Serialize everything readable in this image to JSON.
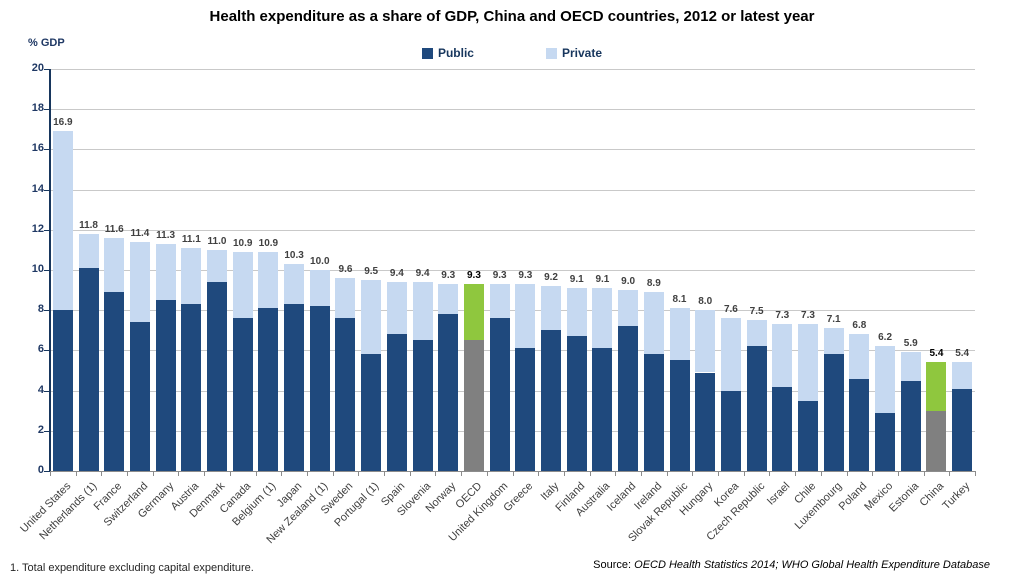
{
  "title": "Health expenditure as a share of GDP, China and OECD countries, 2012 or latest year",
  "y_axis_label": "% GDP",
  "legend": {
    "public_label": "Public",
    "private_label": "Private"
  },
  "footnote": "1. Total expenditure excluding capital expenditure.",
  "source_prefix": "Source:",
  "source_text": "OECD Health Statistics 2014; WHO Global Health Expenditure Database",
  "colors": {
    "public": "#1F497D",
    "private": "#C6D9F1",
    "highlight_public": "#808080",
    "highlight_private": "#8FC73E",
    "gridline": "#C9C9C9",
    "y_axis": "#17365D",
    "x_axis": "#8C8C8C",
    "value_label": "#404040",
    "value_label_highlight": "#000000"
  },
  "chart_data": {
    "type": "bar",
    "stacked": true,
    "title": "Health expenditure as a share of GDP, China and OECD countries, 2012 or latest year",
    "xlabel": "",
    "ylabel": "% GDP",
    "ylim": [
      0,
      20
    ],
    "ytick_step": 2,
    "grid": true,
    "legend_position": "top-center",
    "series_names": [
      "Public",
      "Private"
    ],
    "highlighted_categories": [
      "OECD",
      "China"
    ],
    "categories": [
      "United States",
      "Netherlands (1)",
      "France",
      "Switzerland",
      "Germany",
      "Austria",
      "Denmark",
      "Canada",
      "Belgium (1)",
      "Japan",
      "New Zealand (1)",
      "Sweden",
      "Portugal (1)",
      "Spain",
      "Slovenia",
      "Norway",
      "OECD",
      "United Kingdom",
      "Greece",
      "Italy",
      "Finland",
      "Australia",
      "Iceland",
      "Ireland",
      "Slovak Republic",
      "Hungary",
      "Korea",
      "Czech Republic",
      "Israel",
      "Chile",
      "Luxembourg",
      "Poland",
      "Mexico",
      "Estonia",
      "China",
      "Turkey"
    ],
    "totals": [
      16.9,
      11.8,
      11.6,
      11.4,
      11.3,
      11.1,
      11.0,
      10.9,
      10.9,
      10.3,
      10.0,
      9.6,
      9.5,
      9.4,
      9.4,
      9.3,
      9.3,
      9.3,
      9.3,
      9.2,
      9.1,
      9.1,
      9.0,
      8.9,
      8.1,
      8.0,
      7.6,
      7.5,
      7.3,
      7.3,
      7.1,
      6.8,
      6.2,
      5.9,
      5.4,
      5.4
    ],
    "public": [
      8.0,
      10.1,
      8.9,
      7.4,
      8.5,
      8.3,
      9.4,
      7.6,
      8.1,
      8.3,
      8.2,
      7.6,
      5.8,
      6.8,
      6.5,
      7.8,
      6.5,
      7.6,
      6.1,
      7.0,
      6.7,
      6.1,
      7.2,
      5.8,
      5.5,
      4.9,
      4.0,
      6.2,
      4.2,
      3.5,
      5.8,
      4.6,
      2.9,
      4.5,
      3.0,
      4.1
    ],
    "private": [
      8.9,
      1.7,
      2.7,
      4.0,
      2.8,
      2.8,
      1.6,
      3.3,
      2.8,
      2.0,
      1.8,
      2.0,
      3.7,
      2.6,
      2.9,
      1.5,
      2.8,
      1.7,
      3.2,
      2.2,
      2.4,
      3.0,
      1.8,
      3.1,
      2.6,
      3.1,
      3.6,
      1.3,
      3.1,
      3.8,
      1.3,
      2.2,
      3.3,
      1.4,
      2.4,
      1.3
    ],
    "value_labels": [
      "16.9",
      "11.8",
      "11.6",
      "11.4",
      "11.3",
      "11.1",
      "11.0",
      "10.9",
      "10.9",
      "10.3",
      "10.0",
      "9.6",
      "9.5",
      "9.4",
      "9.4",
      "9.3",
      "9.3",
      "9.3",
      "9.3",
      "9.2",
      "9.1",
      "9.1",
      "9.0",
      "8.9",
      "8.1",
      "8.0",
      "7.6",
      "7.5",
      "7.3",
      "7.3",
      "7.1",
      "6.8",
      "6.2",
      "5.9",
      "5.4",
      "5.4"
    ]
  }
}
